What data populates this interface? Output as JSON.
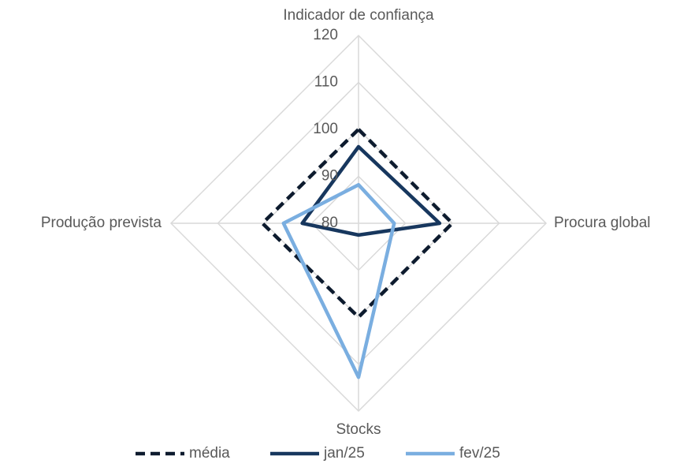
{
  "chart_data": {
    "type": "radar",
    "categories": [
      "Indicador de confiança",
      "Procura global",
      "Stocks",
      "Produção prevista"
    ],
    "rlim": [
      80,
      120
    ],
    "rticks": [
      80,
      90,
      100,
      110,
      120
    ],
    "grid": true,
    "legend": "bottom",
    "series": [
      {
        "name": "média",
        "color": "#0d1b2e",
        "dash": true,
        "values": [
          100,
          100,
          100,
          100.5
        ]
      },
      {
        "name": "jan/25",
        "color": "#17375e",
        "dash": false,
        "values": [
          96.3,
          97.3,
          82.5,
          92
        ]
      },
      {
        "name": "fev/25",
        "color": "#7aaee0",
        "dash": false,
        "values": [
          88.2,
          87.6,
          112.8,
          96
        ]
      }
    ]
  }
}
